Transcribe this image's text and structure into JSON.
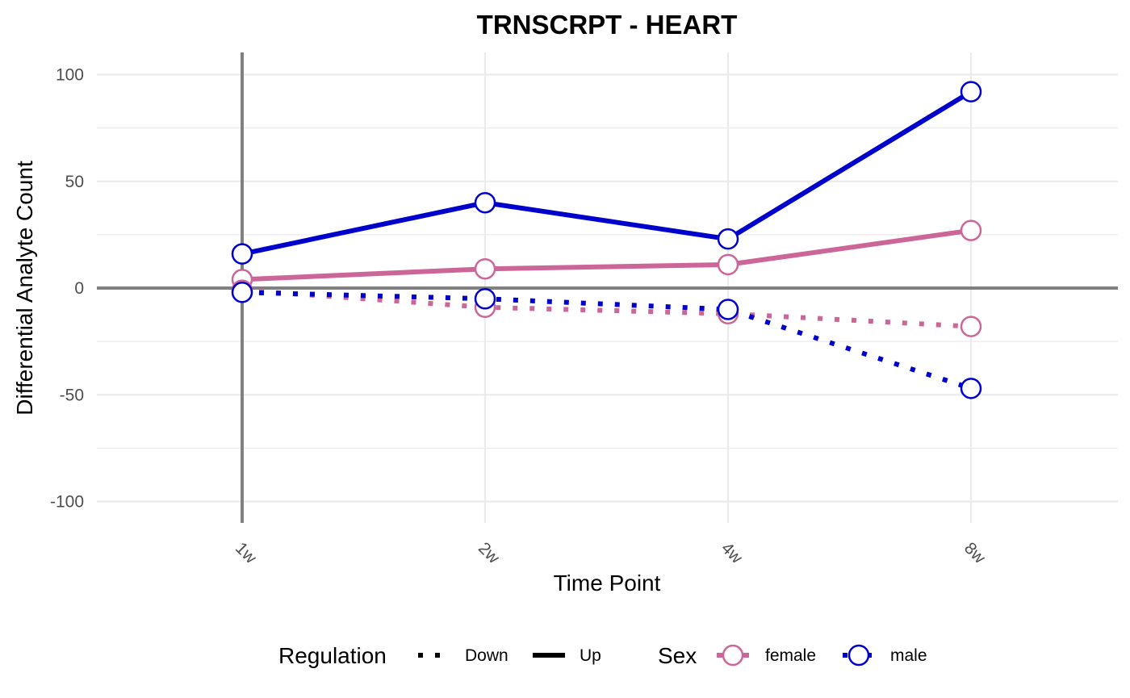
{
  "chart_data": {
    "type": "line",
    "title": "TRNSCRPT - HEART",
    "xlabel": "Time Point",
    "ylabel": "Differential Analyte Count",
    "categories": [
      "1w",
      "2w",
      "4w",
      "8w"
    ],
    "yticks": [
      100,
      50,
      0,
      -50,
      -100
    ],
    "ylim": [
      -110,
      110
    ],
    "grid": true,
    "legend_position": "bottom",
    "colors": {
      "female": "#CC6699",
      "male": "#0000CC",
      "reference": "#808080",
      "grid": "#EBEBEB"
    },
    "series": [
      {
        "sex": "male",
        "regulation": "Up",
        "values": [
          16,
          40,
          23,
          92
        ]
      },
      {
        "sex": "female",
        "regulation": "Up",
        "values": [
          4,
          9,
          11,
          27
        ]
      },
      {
        "sex": "female",
        "regulation": "Down",
        "values": [
          -1,
          -9,
          -12,
          -18
        ]
      },
      {
        "sex": "male",
        "regulation": "Down",
        "values": [
          -2,
          -5,
          -10,
          -47
        ]
      }
    ],
    "legend": {
      "regulation_title": "Regulation",
      "regulation_items": [
        "Down",
        "Up"
      ],
      "sex_title": "Sex",
      "sex_items": [
        "female",
        "male"
      ]
    }
  }
}
